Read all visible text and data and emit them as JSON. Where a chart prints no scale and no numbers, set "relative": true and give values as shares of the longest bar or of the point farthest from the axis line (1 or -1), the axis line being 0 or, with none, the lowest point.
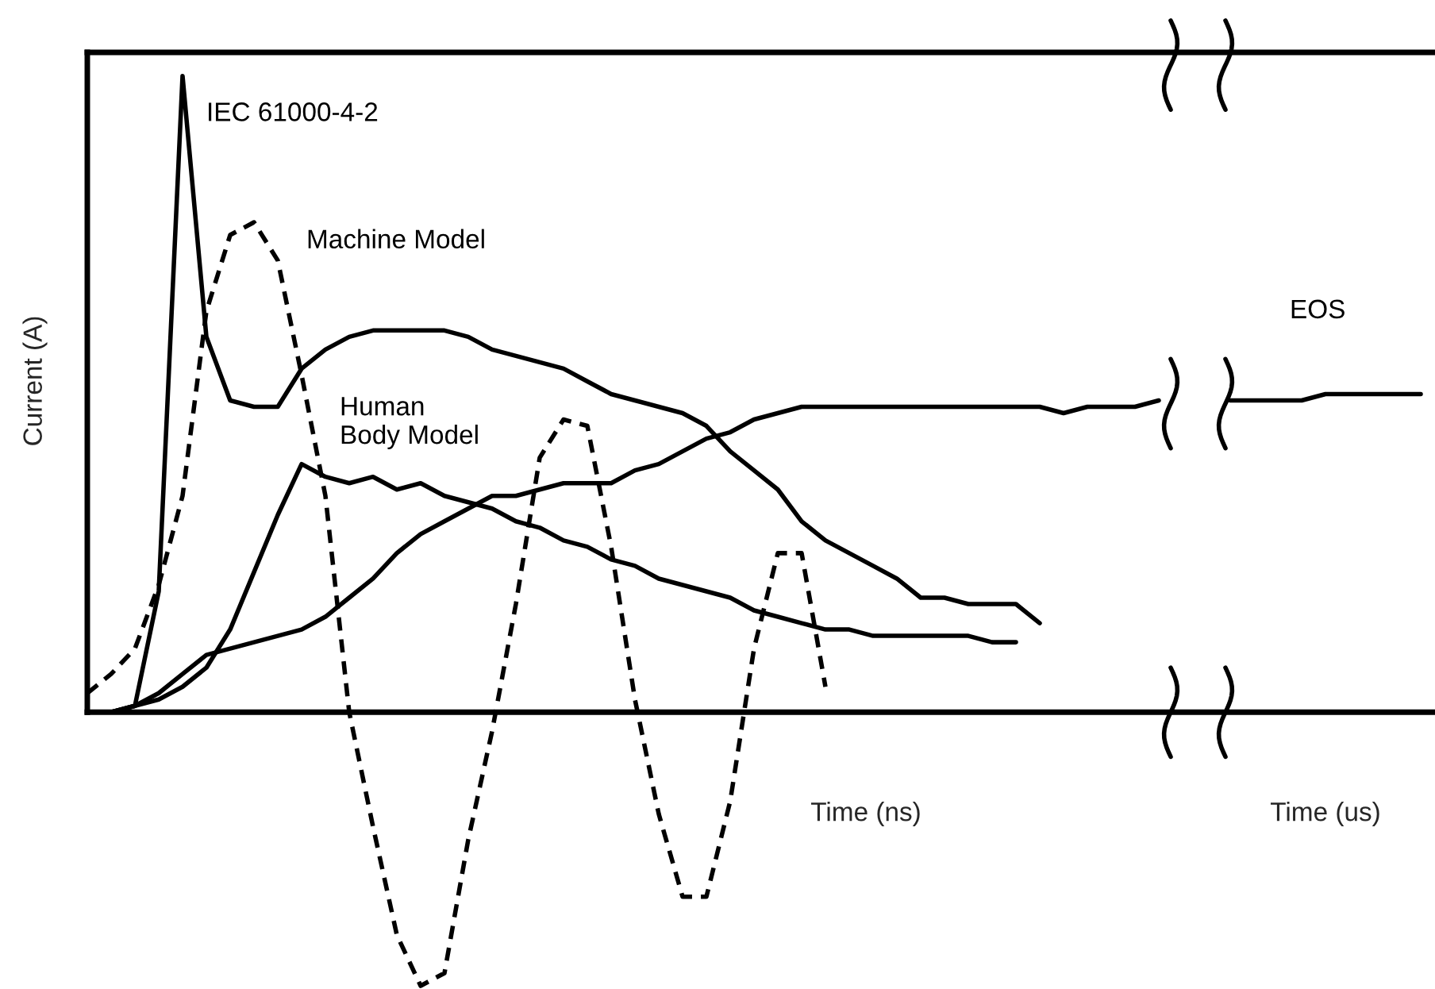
{
  "chart_data": {
    "type": "line",
    "relative": true,
    "xlabel": "Time (ns)",
    "ylabel": "Current (A)",
    "annotations": [
      "Time (us)"
    ],
    "categories": [
      null,
      null,
      null,
      null,
      null,
      null,
      null,
      null,
      null,
      null,
      null,
      null,
      null,
      null,
      null,
      null,
      null,
      null,
      null,
      null,
      null,
      null,
      null,
      null,
      null,
      null,
      null,
      null,
      null,
      null,
      null,
      null,
      null,
      null,
      null,
      null,
      null,
      null,
      null,
      null,
      null,
      null,
      null,
      null,
      null,
      null,
      null,
      null,
      null,
      null,
      null,
      null,
      null,
      null,
      null,
      null,
      null
    ],
    "legend": false,
    "marker": "none",
    "series": [
      {
        "name": "IEC 61000-4-2",
        "color": "#000000",
        "line_style": "solid",
        "values": [
          0.0,
          0.0,
          0.01,
          0.19,
          1.0,
          0.59,
          0.49,
          0.48,
          0.48,
          0.54,
          0.57,
          0.59,
          0.6,
          0.6,
          0.6,
          0.6,
          0.59,
          0.57,
          0.56,
          0.55,
          0.54,
          0.52,
          0.5,
          0.49,
          0.48,
          0.47,
          0.45,
          0.41,
          0.38,
          0.35,
          0.3,
          0.27,
          0.25,
          0.23,
          0.21,
          0.18,
          0.18,
          0.17,
          0.17,
          0.17,
          0.14,
          null,
          null,
          null,
          null,
          null,
          null,
          null,
          null,
          null,
          null,
          null,
          null,
          null,
          null,
          null,
          null
        ]
      },
      {
        "name": "Machine Model",
        "color": "#000000",
        "line_style": "dashed",
        "values": [
          0.03,
          0.06,
          0.1,
          0.2,
          0.34,
          0.63,
          0.75,
          0.77,
          0.71,
          0.53,
          0.34,
          0.0,
          -0.18,
          -0.35,
          -0.43,
          -0.41,
          -0.2,
          -0.03,
          0.17,
          0.4,
          0.46,
          0.45,
          0.26,
          0.02,
          -0.16,
          -0.29,
          -0.29,
          -0.14,
          0.1,
          0.25,
          0.25,
          0.04,
          null,
          null,
          null,
          null,
          null,
          null,
          null,
          null,
          null,
          null,
          null,
          null,
          null,
          null,
          null,
          null,
          null,
          null,
          null,
          null,
          null,
          null,
          null,
          null,
          null
        ]
      },
      {
        "name": "Human\nBody Model",
        "color": "#000000",
        "line_style": "solid",
        "values": [
          0.0,
          0.0,
          0.01,
          0.02,
          0.04,
          0.07,
          0.13,
          0.22,
          0.31,
          0.39,
          0.37,
          0.36,
          0.37,
          0.35,
          0.36,
          0.34,
          0.33,
          0.32,
          0.3,
          0.29,
          0.27,
          0.26,
          0.24,
          0.23,
          0.21,
          0.2,
          0.19,
          0.18,
          0.16,
          0.15,
          0.14,
          0.13,
          0.13,
          0.12,
          0.12,
          0.12,
          0.12,
          0.12,
          0.11,
          0.11,
          null,
          null,
          null,
          null,
          null,
          null,
          null,
          null,
          null,
          null,
          null,
          null,
          null,
          null,
          null,
          null,
          null
        ]
      },
      {
        "name": "EOS",
        "color": "#000000",
        "line_style": "solid",
        "values": [
          0.0,
          0.0,
          0.01,
          0.03,
          0.06,
          0.09,
          0.1,
          0.11,
          0.12,
          0.13,
          0.15,
          0.18,
          0.21,
          0.25,
          0.28,
          0.3,
          0.32,
          0.34,
          0.34,
          0.35,
          0.36,
          0.36,
          0.36,
          0.38,
          0.39,
          0.41,
          0.43,
          0.44,
          0.46,
          0.47,
          0.48,
          0.48,
          0.48,
          0.48,
          0.48,
          0.48,
          0.48,
          0.48,
          0.48,
          0.48,
          0.48,
          0.47,
          0.48,
          0.48,
          0.48,
          0.49,
          null,
          null,
          0.49,
          0.49,
          0.49,
          0.49,
          0.5,
          0.5,
          0.5,
          0.5,
          0.5
        ]
      }
    ]
  }
}
